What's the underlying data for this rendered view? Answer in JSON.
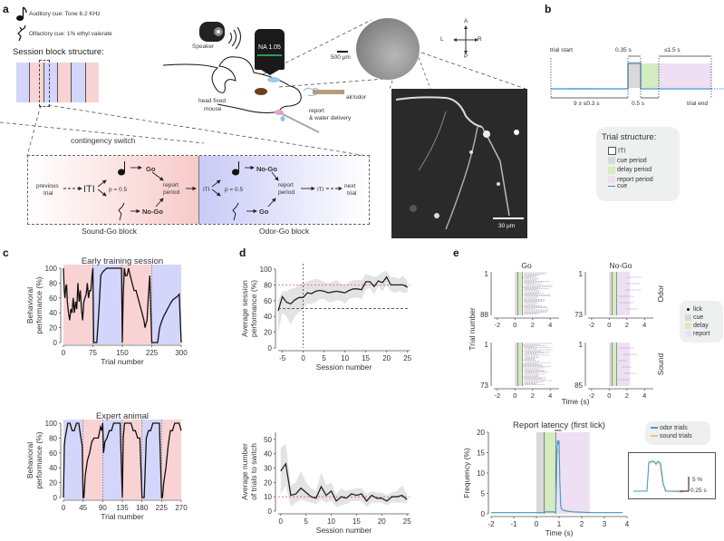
{
  "panels": {
    "a": {
      "label": "a",
      "cues": {
        "auditory": "Auditory cue: Tone 6.2 KHz",
        "olfactory": "Olfactory cue: 1% ethyl valerate",
        "auditory_icon": "music-note-icon",
        "olfactory_icon": "odor-molecule-icon"
      },
      "session_block_title": "Session block structure:",
      "session_blocks": [
        "odor",
        "sound",
        "odor",
        "sound",
        "odor",
        "sound"
      ],
      "setup": {
        "speaker_label": "Speaker",
        "objective_label": "NA 1.05",
        "mouse_label_1": "head fixed",
        "mouse_label_2": "mouse",
        "air_odor_label": "air/odor",
        "report_label_1": "report",
        "report_label_2": "& water delivery",
        "scale_500": "500 µm",
        "scale_30": "30 µm",
        "compass": {
          "A": "A",
          "P": "P",
          "L": "L",
          "R": "R"
        }
      },
      "contingency": {
        "title": "contingency switch",
        "sound_block_label": "Sound-Go block",
        "odor_block_label": "Odor-Go block",
        "previous_trial_1": "previous",
        "previous_trial_2": "trial",
        "iti": "ITI",
        "p": "p = 0.5",
        "go": "Go",
        "nogo": "No-Go",
        "report_1": "report",
        "report_2": "period",
        "next_trial_1": "next",
        "next_trial_2": "trial"
      }
    },
    "b": {
      "label": "b",
      "trial_start": "trial start",
      "trial_end": "trial end",
      "cue_dur": "0.35 s",
      "report_dur": "≤1.5 s",
      "iti_dur": "9  ± ≤0.3 s",
      "delay_dur": "0.5 s",
      "legend": {
        "title": "Trial structure:",
        "items": [
          "ITI",
          "cue period",
          "delay period",
          "report period",
          "cue"
        ]
      }
    },
    "c": {
      "label": "c"
    },
    "d": {
      "label": "d"
    },
    "e": {
      "label": "e",
      "raster": {
        "col_titles": [
          "Go",
          "No-Go"
        ],
        "row_titles": [
          "Odor",
          "Sound"
        ],
        "ylabel": "Trial number",
        "xlabel": "Time (s)",
        "y_ranges": [
          [
            "1",
            "88"
          ],
          [
            "1",
            "73"
          ],
          [
            "1",
            "73"
          ],
          [
            "1",
            "85"
          ]
        ],
        "xticks": [
          "-2",
          "0",
          "2",
          "4"
        ],
        "legend": [
          "lick",
          "cue",
          "delay",
          "report"
        ]
      },
      "latency": {
        "legend": [
          "odor trials",
          "sound trials"
        ],
        "inset_scale_y": "5 %",
        "inset_scale_x": "0.25 s"
      }
    }
  },
  "colors": {
    "sound_block": "#f9d3d3",
    "odor_block": "#d4d5fa",
    "cue_period": "#d9d9d9",
    "delay_period": "#d5ebc0",
    "report_period": "#eedff2",
    "cue_line": "#3a8fd0",
    "odor_trace": "#3a9fd6",
    "sound_trace": "#f3c27e",
    "threshold": "#e06060"
  },
  "chart_data": [
    {
      "id": "c-early",
      "type": "line",
      "title": "Early training session",
      "xlabel": "Trial number",
      "ylabel": "Behavioral performance (%)",
      "xticks": [
        0,
        75,
        150,
        225,
        300
      ],
      "yticks": [
        0,
        20,
        40,
        60,
        80,
        100
      ],
      "xlim": [
        0,
        300
      ],
      "ylim": [
        0,
        100
      ],
      "blocks": [
        {
          "from": 0,
          "to": 75,
          "type": "sound"
        },
        {
          "from": 75,
          "to": 150,
          "type": "odor"
        },
        {
          "from": 150,
          "to": 225,
          "type": "sound"
        },
        {
          "from": 225,
          "to": 300,
          "type": "odor"
        }
      ],
      "x": [
        0,
        2,
        4,
        6,
        8,
        10,
        13,
        16,
        19,
        22,
        25,
        28,
        31,
        34,
        37,
        40,
        43,
        46,
        49,
        52,
        55,
        58,
        61,
        64,
        67,
        70,
        73,
        75,
        77,
        80,
        85,
        90,
        95,
        100,
        110,
        120,
        130,
        140,
        148,
        150,
        152,
        155,
        158,
        162,
        166,
        170,
        175,
        180,
        185,
        190,
        195,
        200,
        205,
        208,
        210,
        213,
        216,
        220,
        225,
        227,
        230,
        235,
        240,
        245,
        250,
        255,
        260,
        265,
        270,
        275,
        280,
        285,
        290,
        295,
        300
      ],
      "values": [
        100,
        70,
        60,
        75,
        78,
        55,
        40,
        30,
        45,
        40,
        60,
        40,
        55,
        45,
        80,
        55,
        70,
        45,
        30,
        55,
        60,
        65,
        80,
        60,
        70,
        70,
        90,
        100,
        0,
        0,
        0,
        40,
        90,
        95,
        100,
        100,
        100,
        100,
        100,
        0,
        60,
        100,
        90,
        90,
        100,
        90,
        80,
        70,
        70,
        60,
        50,
        40,
        30,
        20,
        25,
        30,
        60,
        90,
        0,
        0,
        0,
        0,
        0,
        20,
        28,
        35,
        40,
        45,
        50,
        55,
        58,
        60,
        62,
        65,
        0
      ]
    },
    {
      "id": "c-expert",
      "type": "line",
      "title": "Expert animal",
      "xlabel": "Trial number",
      "ylabel": "Behavioral performance (%)",
      "xticks": [
        0,
        45,
        90,
        135,
        180,
        225,
        270
      ],
      "yticks": [
        0,
        20,
        40,
        60,
        80,
        100
      ],
      "xlim": [
        0,
        270
      ],
      "ylim": [
        0,
        100
      ],
      "blocks": [
        {
          "from": 0,
          "to": 45,
          "type": "odor"
        },
        {
          "from": 45,
          "to": 90,
          "type": "sound"
        },
        {
          "from": 90,
          "to": 135,
          "type": "odor"
        },
        {
          "from": 135,
          "to": 180,
          "type": "sound"
        },
        {
          "from": 180,
          "to": 225,
          "type": "odor"
        },
        {
          "from": 225,
          "to": 270,
          "type": "sound"
        }
      ],
      "x": [
        0,
        2,
        4,
        7,
        10,
        15,
        20,
        25,
        30,
        35,
        40,
        43,
        45,
        47,
        50,
        55,
        60,
        65,
        70,
        75,
        80,
        85,
        88,
        90,
        92,
        95,
        100,
        105,
        110,
        115,
        120,
        125,
        130,
        135,
        137,
        140,
        145,
        150,
        155,
        160,
        165,
        170,
        175,
        180,
        182,
        185,
        190,
        195,
        200,
        205,
        210,
        215,
        220,
        225,
        227,
        230,
        235,
        240,
        245,
        250,
        255,
        260,
        265,
        270
      ],
      "values": [
        0,
        70,
        80,
        90,
        100,
        100,
        90,
        90,
        100,
        100,
        80,
        70,
        0,
        0,
        30,
        50,
        60,
        75,
        80,
        80,
        80,
        95,
        90,
        100,
        60,
        75,
        80,
        90,
        90,
        100,
        100,
        100,
        100,
        0,
        80,
        100,
        100,
        100,
        100,
        90,
        90,
        80,
        80,
        0,
        0,
        0,
        80,
        90,
        90,
        100,
        100,
        100,
        100,
        0,
        0,
        20,
        40,
        70,
        90,
        90,
        100,
        100,
        100,
        90
      ]
    },
    {
      "id": "d-performance",
      "type": "line",
      "xlabel": "Session number",
      "ylabel": "Average session performance (%)",
      "xticks": [
        -5,
        0,
        5,
        10,
        15,
        20,
        25
      ],
      "yticks": [
        0,
        20,
        40,
        60,
        80,
        100
      ],
      "xlim": [
        -6,
        25.5
      ],
      "ylim": [
        0,
        100
      ],
      "reference_lines": {
        "chance": 50,
        "criterion": 80,
        "switch_session": 0
      },
      "x": [
        -6,
        -5,
        -4,
        -3,
        -2,
        -1,
        0,
        1,
        2,
        3,
        4,
        5,
        6,
        7,
        8,
        9,
        10,
        11,
        12,
        13,
        14,
        15,
        16,
        17,
        18,
        19,
        20,
        21,
        22,
        23,
        24,
        25
      ],
      "values": [
        47,
        65,
        58,
        56,
        61,
        64,
        64,
        70,
        69,
        72,
        73,
        72,
        70,
        71,
        72,
        71,
        70,
        73,
        75,
        75,
        74,
        84,
        84,
        78,
        85,
        83,
        90,
        80,
        80,
        80,
        80,
        77
      ],
      "upper": [
        60,
        72,
        72,
        75,
        76,
        80,
        82,
        84,
        86,
        88,
        86,
        84,
        82,
        84,
        86,
        82,
        80,
        84,
        86,
        86,
        86,
        94,
        92,
        90,
        92,
        96,
        98,
        90,
        90,
        88,
        92,
        84
      ],
      "lower": [
        20,
        45,
        40,
        30,
        40,
        45,
        50,
        56,
        56,
        58,
        62,
        62,
        58,
        58,
        60,
        60,
        56,
        62,
        64,
        64,
        62,
        74,
        76,
        68,
        78,
        72,
        80,
        72,
        70,
        72,
        70,
        70
      ]
    },
    {
      "id": "d-switch",
      "type": "line",
      "xlabel": "Session number",
      "ylabel": "Average number of trials to switch",
      "xticks": [
        0,
        5,
        10,
        15,
        20,
        25
      ],
      "yticks": [
        0,
        10,
        20,
        30,
        40,
        50
      ],
      "xlim": [
        -0.5,
        25.5
      ],
      "ylim": [
        0,
        55
      ],
      "reference_lines": {
        "criterion": 10
      },
      "x": [
        0,
        1,
        2,
        3,
        4,
        5,
        6,
        7,
        8,
        9,
        10,
        11,
        12,
        13,
        14,
        15,
        16,
        17,
        18,
        19,
        20,
        21,
        22,
        23,
        24,
        25
      ],
      "values": [
        28,
        33,
        11,
        12,
        16,
        13,
        10,
        9,
        17,
        11,
        14,
        7,
        10,
        9,
        12,
        11,
        12,
        7,
        11,
        9,
        9,
        7,
        10,
        10,
        11,
        8
      ],
      "upper": [
        44,
        47,
        18,
        20,
        28,
        20,
        16,
        14,
        27,
        18,
        20,
        12,
        16,
        14,
        15,
        16,
        16,
        12,
        14,
        13,
        13,
        11,
        13,
        14,
        18,
        12
      ],
      "lower": [
        12,
        18,
        3,
        6,
        8,
        7,
        6,
        5,
        8,
        6,
        7,
        3,
        4,
        5,
        7,
        7,
        7,
        3,
        6,
        6,
        6,
        4,
        6,
        6,
        6,
        5
      ]
    },
    {
      "id": "e-latency",
      "type": "line",
      "title": "Report latency (first lick)",
      "xlabel": "Time (s)",
      "ylabel": "Frequency (%)",
      "xticks": [
        -2,
        -1,
        0,
        1,
        2,
        3,
        4
      ],
      "yticks": [
        0,
        5,
        10,
        15,
        20
      ],
      "xlim": [
        -2,
        4
      ],
      "ylim": [
        0,
        20
      ],
      "periods": {
        "cue": [
          0,
          0.35
        ],
        "delay": [
          0.35,
          0.85
        ],
        "report": [
          0.85,
          2.35
        ]
      },
      "x": [
        -2,
        0.35,
        0.4,
        0.8,
        0.85,
        0.9,
        0.93,
        0.97,
        1.0,
        1.03,
        1.07,
        1.1,
        1.2,
        1.4,
        1.6,
        2.0,
        2.4,
        3.0,
        3.8
      ],
      "series": [
        {
          "name": "odor trials",
          "values": [
            0.3,
            0.3,
            0.5,
            0.5,
            0.3,
            15,
            18,
            17,
            18,
            8,
            2,
            1.2,
            0.8,
            0.6,
            0.5,
            0.4,
            0.3,
            0.3,
            0.3
          ]
        },
        {
          "name": "sound trials",
          "values": [
            0.3,
            0.3,
            0.4,
            0.4,
            0.3,
            13,
            16,
            15,
            16,
            9,
            2.5,
            1.5,
            1,
            0.7,
            0.5,
            0.4,
            0.3,
            0.3,
            0.3
          ]
        }
      ]
    }
  ]
}
